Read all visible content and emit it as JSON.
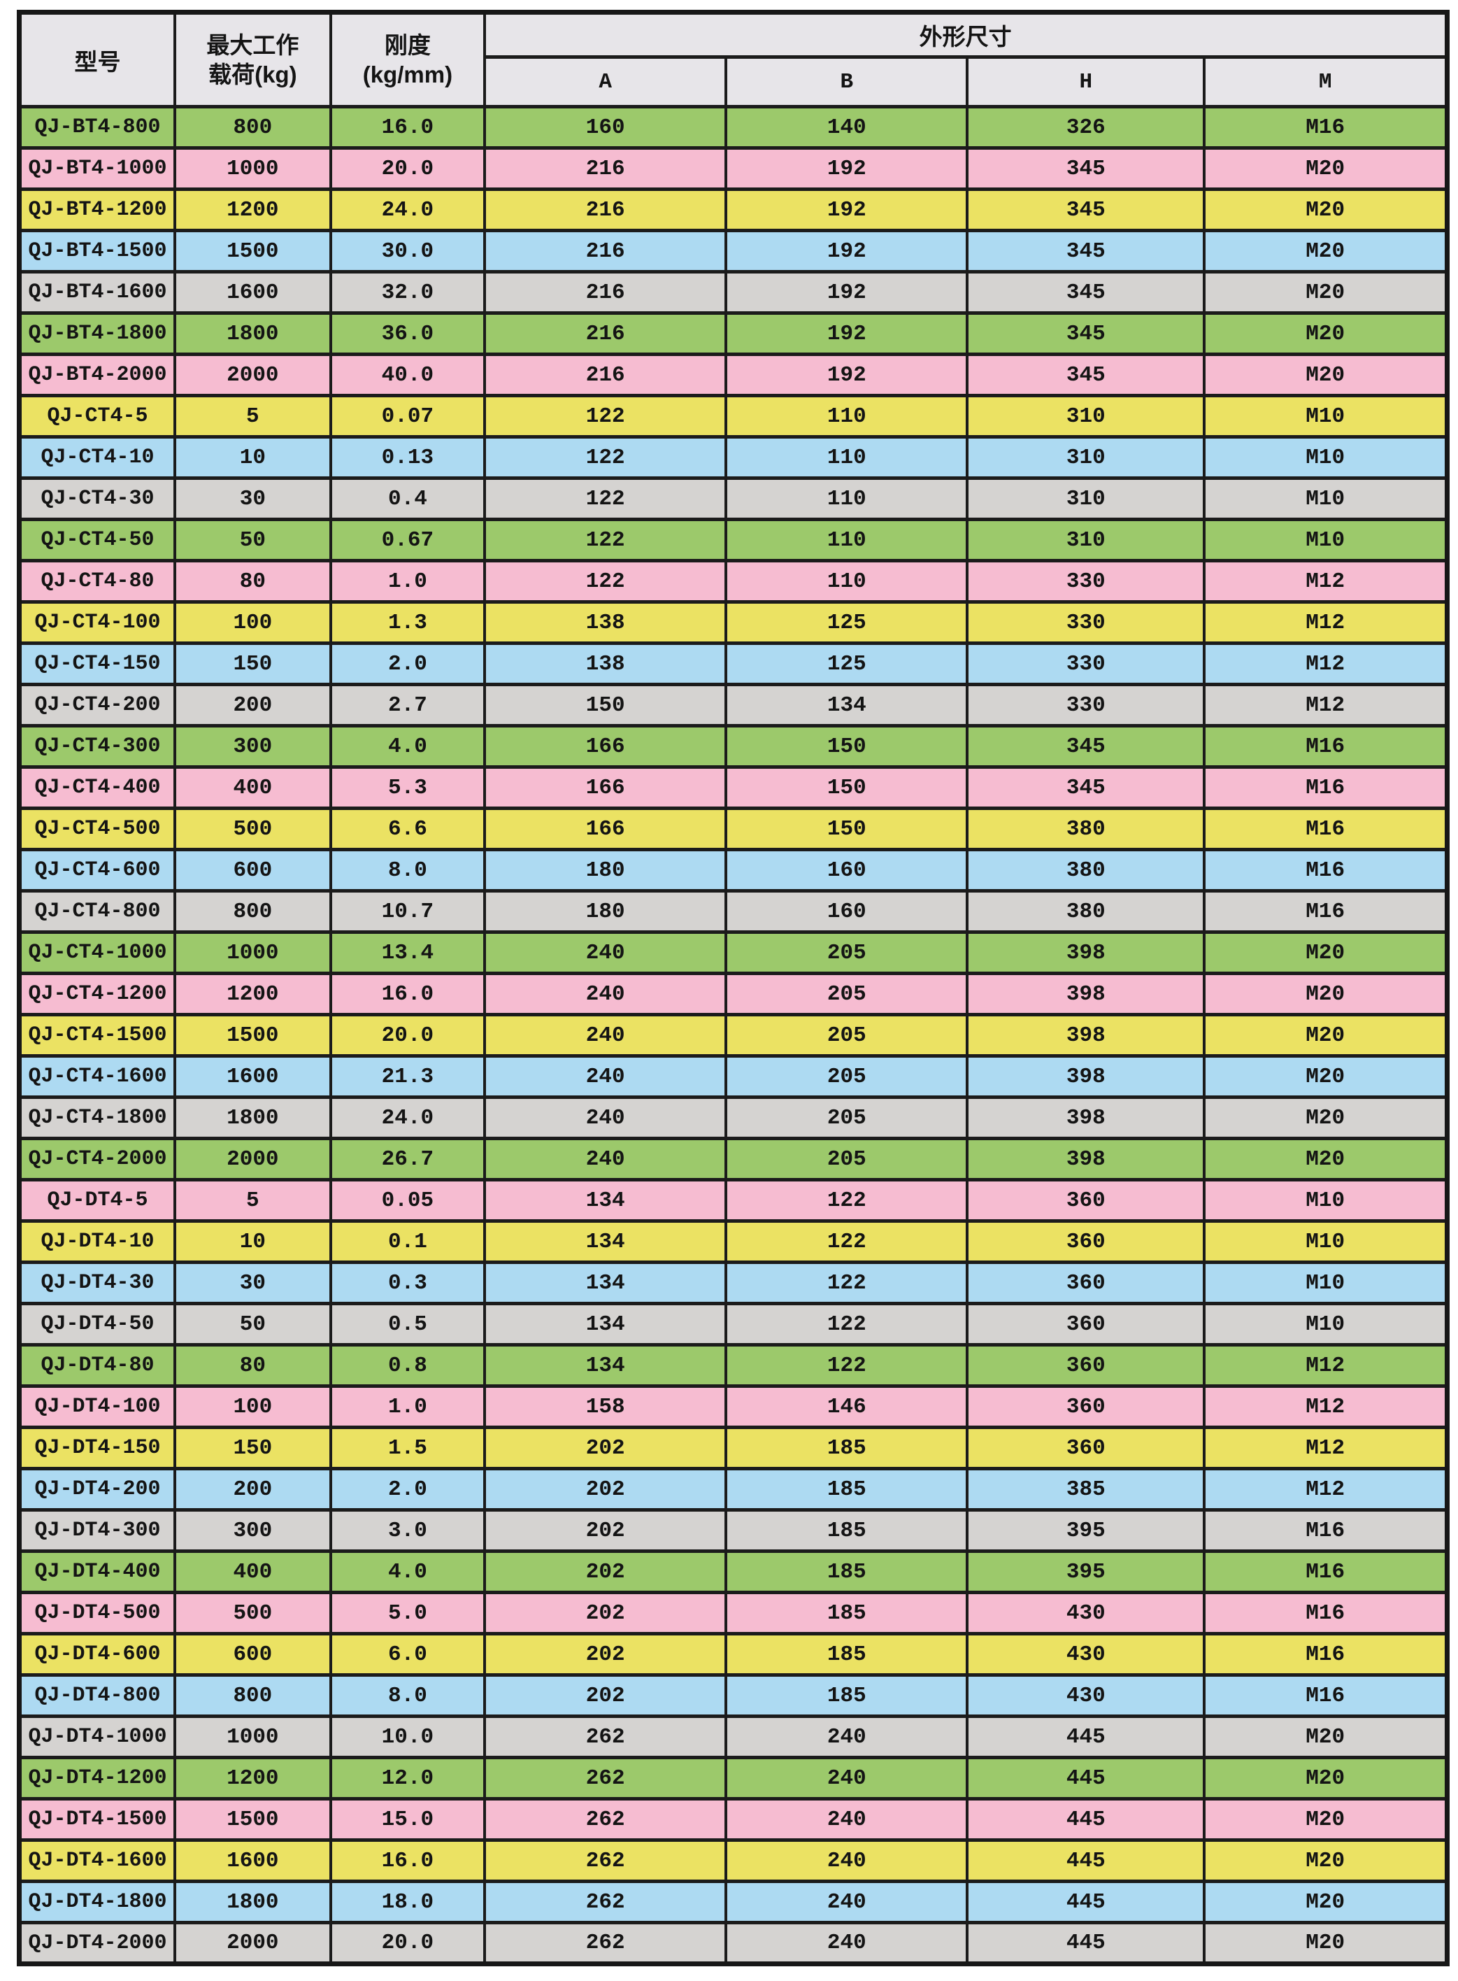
{
  "table": {
    "header": {
      "model": "型号",
      "max_load_line1": "最大工作",
      "max_load_line2": "载荷(kg)",
      "stiffness_line1": "刚度",
      "stiffness_line2": "(kg/mm)",
      "dimensions": "外形尺寸",
      "dim_cols": {
        "a": "A",
        "b": "B",
        "h": "H",
        "m": "M"
      }
    },
    "colors": {
      "green": "#9cc96b",
      "pink": "#f6bcd1",
      "yellow": "#ebe263",
      "blue": "#addaf2",
      "gray": "#d5d3d1",
      "header_bg": "#e7e5e9",
      "border": "#1b1b1b"
    },
    "rows": [
      {
        "model": "QJ-BT4-800",
        "load": "800",
        "stiffness": "16.0",
        "A": "160",
        "B": "140",
        "H": "326",
        "M": "M16",
        "color": "green"
      },
      {
        "model": "QJ-BT4-1000",
        "load": "1000",
        "stiffness": "20.0",
        "A": "216",
        "B": "192",
        "H": "345",
        "M": "M20",
        "color": "pink"
      },
      {
        "model": "QJ-BT4-1200",
        "load": "1200",
        "stiffness": "24.0",
        "A": "216",
        "B": "192",
        "H": "345",
        "M": "M20",
        "color": "yellow"
      },
      {
        "model": "QJ-BT4-1500",
        "load": "1500",
        "stiffness": "30.0",
        "A": "216",
        "B": "192",
        "H": "345",
        "M": "M20",
        "color": "blue"
      },
      {
        "model": "QJ-BT4-1600",
        "load": "1600",
        "stiffness": "32.0",
        "A": "216",
        "B": "192",
        "H": "345",
        "M": "M20",
        "color": "gray"
      },
      {
        "model": "QJ-BT4-1800",
        "load": "1800",
        "stiffness": "36.0",
        "A": "216",
        "B": "192",
        "H": "345",
        "M": "M20",
        "color": "green"
      },
      {
        "model": "QJ-BT4-2000",
        "load": "2000",
        "stiffness": "40.0",
        "A": "216",
        "B": "192",
        "H": "345",
        "M": "M20",
        "color": "pink"
      },
      {
        "model": "QJ-CT4-5",
        "load": "5",
        "stiffness": "0.07",
        "A": "122",
        "B": "110",
        "H": "310",
        "M": "M10",
        "color": "yellow"
      },
      {
        "model": "QJ-CT4-10",
        "load": "10",
        "stiffness": "0.13",
        "A": "122",
        "B": "110",
        "H": "310",
        "M": "M10",
        "color": "blue"
      },
      {
        "model": "QJ-CT4-30",
        "load": "30",
        "stiffness": "0.4",
        "A": "122",
        "B": "110",
        "H": "310",
        "M": "M10",
        "color": "gray"
      },
      {
        "model": "QJ-CT4-50",
        "load": "50",
        "stiffness": "0.67",
        "A": "122",
        "B": "110",
        "H": "310",
        "M": "M10",
        "color": "green"
      },
      {
        "model": "QJ-CT4-80",
        "load": "80",
        "stiffness": "1.0",
        "A": "122",
        "B": "110",
        "H": "330",
        "M": "M12",
        "color": "pink"
      },
      {
        "model": "QJ-CT4-100",
        "load": "100",
        "stiffness": "1.3",
        "A": "138",
        "B": "125",
        "H": "330",
        "M": "M12",
        "color": "yellow"
      },
      {
        "model": "QJ-CT4-150",
        "load": "150",
        "stiffness": "2.0",
        "A": "138",
        "B": "125",
        "H": "330",
        "M": "M12",
        "color": "blue"
      },
      {
        "model": "QJ-CT4-200",
        "load": "200",
        "stiffness": "2.7",
        "A": "150",
        "B": "134",
        "H": "330",
        "M": "M12",
        "color": "gray"
      },
      {
        "model": "QJ-CT4-300",
        "load": "300",
        "stiffness": "4.0",
        "A": "166",
        "B": "150",
        "H": "345",
        "M": "M16",
        "color": "green"
      },
      {
        "model": "QJ-CT4-400",
        "load": "400",
        "stiffness": "5.3",
        "A": "166",
        "B": "150",
        "H": "345",
        "M": "M16",
        "color": "pink"
      },
      {
        "model": "QJ-CT4-500",
        "load": "500",
        "stiffness": "6.6",
        "A": "166",
        "B": "150",
        "H": "380",
        "M": "M16",
        "color": "yellow"
      },
      {
        "model": "QJ-CT4-600",
        "load": "600",
        "stiffness": "8.0",
        "A": "180",
        "B": "160",
        "H": "380",
        "M": "M16",
        "color": "blue"
      },
      {
        "model": "QJ-CT4-800",
        "load": "800",
        "stiffness": "10.7",
        "A": "180",
        "B": "160",
        "H": "380",
        "M": "M16",
        "color": "gray"
      },
      {
        "model": "QJ-CT4-1000",
        "load": "1000",
        "stiffness": "13.4",
        "A": "240",
        "B": "205",
        "H": "398",
        "M": "M20",
        "color": "green"
      },
      {
        "model": "QJ-CT4-1200",
        "load": "1200",
        "stiffness": "16.0",
        "A": "240",
        "B": "205",
        "H": "398",
        "M": "M20",
        "color": "pink"
      },
      {
        "model": "QJ-CT4-1500",
        "load": "1500",
        "stiffness": "20.0",
        "A": "240",
        "B": "205",
        "H": "398",
        "M": "M20",
        "color": "yellow"
      },
      {
        "model": "QJ-CT4-1600",
        "load": "1600",
        "stiffness": "21.3",
        "A": "240",
        "B": "205",
        "H": "398",
        "M": "M20",
        "color": "blue"
      },
      {
        "model": "QJ-CT4-1800",
        "load": "1800",
        "stiffness": "24.0",
        "A": "240",
        "B": "205",
        "H": "398",
        "M": "M20",
        "color": "gray"
      },
      {
        "model": "QJ-CT4-2000",
        "load": "2000",
        "stiffness": "26.7",
        "A": "240",
        "B": "205",
        "H": "398",
        "M": "M20",
        "color": "green"
      },
      {
        "model": "QJ-DT4-5",
        "load": "5",
        "stiffness": "0.05",
        "A": "134",
        "B": "122",
        "H": "360",
        "M": "M10",
        "color": "pink"
      },
      {
        "model": "QJ-DT4-10",
        "load": "10",
        "stiffness": "0.1",
        "A": "134",
        "B": "122",
        "H": "360",
        "M": "M10",
        "color": "yellow"
      },
      {
        "model": "QJ-DT4-30",
        "load": "30",
        "stiffness": "0.3",
        "A": "134",
        "B": "122",
        "H": "360",
        "M": "M10",
        "color": "blue"
      },
      {
        "model": "QJ-DT4-50",
        "load": "50",
        "stiffness": "0.5",
        "A": "134",
        "B": "122",
        "H": "360",
        "M": "M10",
        "color": "gray"
      },
      {
        "model": "QJ-DT4-80",
        "load": "80",
        "stiffness": "0.8",
        "A": "134",
        "B": "122",
        "H": "360",
        "M": "M12",
        "color": "green"
      },
      {
        "model": "QJ-DT4-100",
        "load": "100",
        "stiffness": "1.0",
        "A": "158",
        "B": "146",
        "H": "360",
        "M": "M12",
        "color": "pink"
      },
      {
        "model": "QJ-DT4-150",
        "load": "150",
        "stiffness": "1.5",
        "A": "202",
        "B": "185",
        "H": "360",
        "M": "M12",
        "color": "yellow"
      },
      {
        "model": "QJ-DT4-200",
        "load": "200",
        "stiffness": "2.0",
        "A": "202",
        "B": "185",
        "H": "385",
        "M": "M12",
        "color": "blue"
      },
      {
        "model": "QJ-DT4-300",
        "load": "300",
        "stiffness": "3.0",
        "A": "202",
        "B": "185",
        "H": "395",
        "M": "M16",
        "color": "gray"
      },
      {
        "model": "QJ-DT4-400",
        "load": "400",
        "stiffness": "4.0",
        "A": "202",
        "B": "185",
        "H": "395",
        "M": "M16",
        "color": "green"
      },
      {
        "model": "QJ-DT4-500",
        "load": "500",
        "stiffness": "5.0",
        "A": "202",
        "B": "185",
        "H": "430",
        "M": "M16",
        "color": "pink"
      },
      {
        "model": "QJ-DT4-600",
        "load": "600",
        "stiffness": "6.0",
        "A": "202",
        "B": "185",
        "H": "430",
        "M": "M16",
        "color": "yellow"
      },
      {
        "model": "QJ-DT4-800",
        "load": "800",
        "stiffness": "8.0",
        "A": "202",
        "B": "185",
        "H": "430",
        "M": "M16",
        "color": "blue"
      },
      {
        "model": "QJ-DT4-1000",
        "load": "1000",
        "stiffness": "10.0",
        "A": "262",
        "B": "240",
        "H": "445",
        "M": "M20",
        "color": "gray"
      },
      {
        "model": "QJ-DT4-1200",
        "load": "1200",
        "stiffness": "12.0",
        "A": "262",
        "B": "240",
        "H": "445",
        "M": "M20",
        "color": "green"
      },
      {
        "model": "QJ-DT4-1500",
        "load": "1500",
        "stiffness": "15.0",
        "A": "262",
        "B": "240",
        "H": "445",
        "M": "M20",
        "color": "pink"
      },
      {
        "model": "QJ-DT4-1600",
        "load": "1600",
        "stiffness": "16.0",
        "A": "262",
        "B": "240",
        "H": "445",
        "M": "M20",
        "color": "yellow"
      },
      {
        "model": "QJ-DT4-1800",
        "load": "1800",
        "stiffness": "18.0",
        "A": "262",
        "B": "240",
        "H": "445",
        "M": "M20",
        "color": "blue"
      },
      {
        "model": "QJ-DT4-2000",
        "load": "2000",
        "stiffness": "20.0",
        "A": "262",
        "B": "240",
        "H": "445",
        "M": "M20",
        "color": "gray"
      }
    ]
  }
}
